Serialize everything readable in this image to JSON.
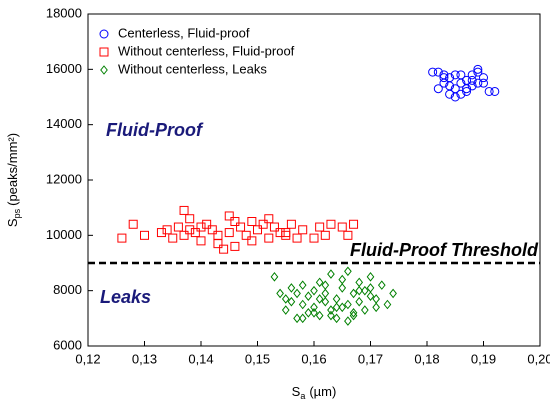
{
  "chart_data": {
    "type": "scatter",
    "xlabel": {
      "symbol": "S",
      "sub": "a",
      "unit": "(µm)"
    },
    "ylabel": {
      "symbol": "S",
      "sub": "ps",
      "unit": "(peaks/mm²)"
    },
    "xlim": [
      0.12,
      0.2
    ],
    "xticks": [
      {
        "value": 0.12,
        "label": "0,12"
      },
      {
        "value": 0.13,
        "label": "0,13"
      },
      {
        "value": 0.14,
        "label": "0,14"
      },
      {
        "value": 0.15,
        "label": "0,15"
      },
      {
        "value": 0.16,
        "label": "0,16"
      },
      {
        "value": 0.17,
        "label": "0,17"
      },
      {
        "value": 0.18,
        "label": "0,18"
      },
      {
        "value": 0.19,
        "label": "0,19"
      },
      {
        "value": 0.2,
        "label": "0,20"
      }
    ],
    "ylim": [
      6000,
      18000
    ],
    "yticks": [
      6000,
      8000,
      10000,
      12000,
      14000,
      16000,
      18000
    ],
    "legend": "upper left",
    "threshold": {
      "label": "Fluid-Proof Threshold",
      "value": 9000
    },
    "annotations": [
      "Fluid-Proof",
      "Leaks"
    ],
    "series": [
      {
        "name": "Centerless, Fluid-proof",
        "color": "#0000ff",
        "marker": "circle",
        "x": [
          0.182,
          0.183,
          0.184,
          0.185,
          0.186,
          0.187,
          0.188,
          0.189,
          0.19,
          0.191,
          0.182,
          0.184,
          0.186,
          0.188,
          0.19,
          0.183,
          0.185,
          0.187,
          0.189,
          0.192,
          0.181,
          0.184,
          0.186,
          0.188,
          0.185,
          0.187,
          0.189,
          0.183
        ],
        "values": [
          15900,
          15500,
          15700,
          15300,
          15800,
          15600,
          15400,
          15900,
          15700,
          15200,
          15300,
          15100,
          15500,
          15800,
          15500,
          15700,
          15000,
          15300,
          16000,
          15200,
          15900,
          15400,
          15100,
          15600,
          15800,
          15200,
          15500,
          15800
        ]
      },
      {
        "name": "Without centerless, Fluid-proof",
        "color": "#ff0000",
        "marker": "square",
        "x": [
          0.126,
          0.128,
          0.13,
          0.133,
          0.135,
          0.136,
          0.137,
          0.137,
          0.138,
          0.139,
          0.14,
          0.141,
          0.142,
          0.143,
          0.144,
          0.145,
          0.145,
          0.146,
          0.147,
          0.148,
          0.149,
          0.15,
          0.151,
          0.152,
          0.153,
          0.154,
          0.155,
          0.156,
          0.157,
          0.158,
          0.16,
          0.161,
          0.162,
          0.163,
          0.165,
          0.166,
          0.167,
          0.138,
          0.14,
          0.143,
          0.146,
          0.149,
          0.152,
          0.155,
          0.134
        ],
        "values": [
          9900,
          10400,
          10000,
          10100,
          9900,
          10300,
          10900,
          10000,
          10600,
          10100,
          9800,
          10400,
          10200,
          10000,
          9500,
          10100,
          10700,
          9600,
          10300,
          10000,
          10500,
          10200,
          10400,
          9900,
          10300,
          10100,
          10000,
          10400,
          9900,
          10200,
          9900,
          10300,
          10000,
          10400,
          10300,
          10000,
          10400,
          10200,
          10300,
          9700,
          10500,
          9800,
          10600,
          10100,
          10200
        ]
      },
      {
        "name": "Without centerless, Leaks",
        "color": "#008000",
        "marker": "diamond",
        "x": [
          0.153,
          0.154,
          0.155,
          0.156,
          0.156,
          0.157,
          0.158,
          0.158,
          0.159,
          0.159,
          0.16,
          0.16,
          0.161,
          0.161,
          0.162,
          0.162,
          0.163,
          0.163,
          0.164,
          0.164,
          0.165,
          0.165,
          0.166,
          0.166,
          0.167,
          0.167,
          0.168,
          0.168,
          0.169,
          0.169,
          0.17,
          0.17,
          0.171,
          0.171,
          0.172,
          0.173,
          0.174,
          0.155,
          0.157,
          0.16,
          0.162,
          0.164,
          0.166,
          0.168,
          0.163,
          0.165,
          0.167,
          0.161,
          0.158,
          0.17
        ],
        "values": [
          8500,
          7900,
          7300,
          7600,
          8100,
          7000,
          7500,
          8200,
          7200,
          7800,
          7400,
          8000,
          7100,
          8300,
          7600,
          7900,
          7300,
          8600,
          7700,
          7000,
          8100,
          7400,
          8700,
          7500,
          7900,
          7200,
          8300,
          7600,
          8000,
          7300,
          7800,
          8500,
          7400,
          7700,
          8200,
          7500,
          7900,
          7700,
          7900,
          7200,
          8200,
          7400,
          6900,
          8000,
          7100,
          8400,
          7100,
          7700,
          7000,
          8100
        ]
      }
    ]
  }
}
